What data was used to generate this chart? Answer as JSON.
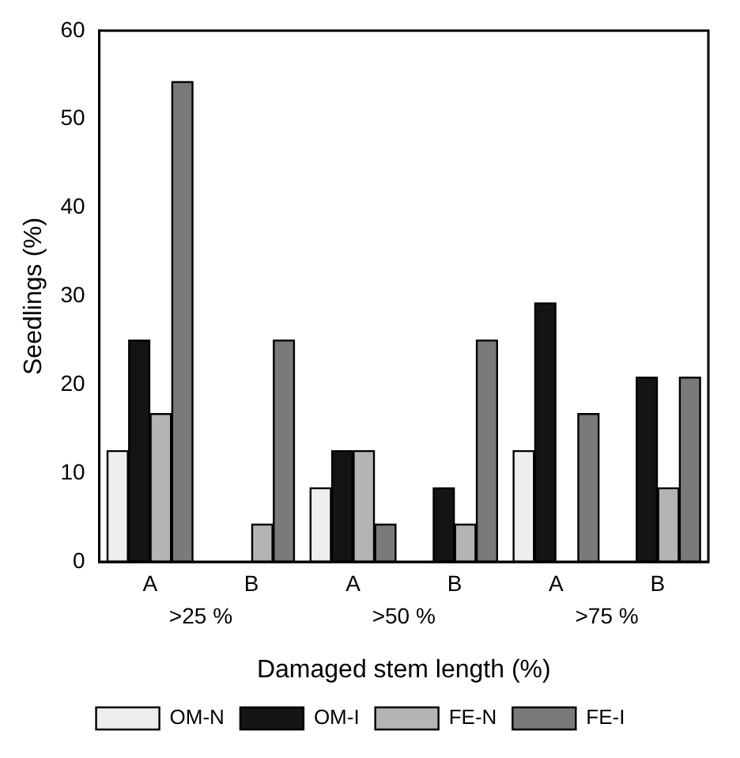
{
  "chart_data": {
    "type": "bar",
    "ylabel": "Seedlings (%)",
    "xlabel": "Damaged stem length (%)",
    "categories": [
      "A",
      "B",
      "A",
      "B",
      "A",
      "B"
    ],
    "annotations": [
      ">25 %",
      ">50 %",
      ">75 %"
    ],
    "series": [
      {
        "name": "OM-N",
        "color": "#eeeeee",
        "values": [
          12.5,
          0,
          8.3,
          0,
          12.5,
          0
        ]
      },
      {
        "name": "OM-I",
        "color": "#141414",
        "values": [
          25,
          0,
          12.5,
          8.3,
          29.2,
          20.8
        ]
      },
      {
        "name": "FE-N",
        "color": "#b4b4b4",
        "values": [
          16.7,
          4.2,
          12.5,
          4.2,
          0,
          8.3
        ]
      },
      {
        "name": "FE-I",
        "color": "#7a7a7a",
        "values": [
          54.2,
          25,
          4.2,
          25,
          16.7,
          20.8
        ]
      }
    ],
    "ylim": [
      0,
      60
    ],
    "yticks": [
      0,
      10,
      20,
      30,
      40,
      50,
      60
    ],
    "grid": false,
    "legend": "bottom"
  }
}
